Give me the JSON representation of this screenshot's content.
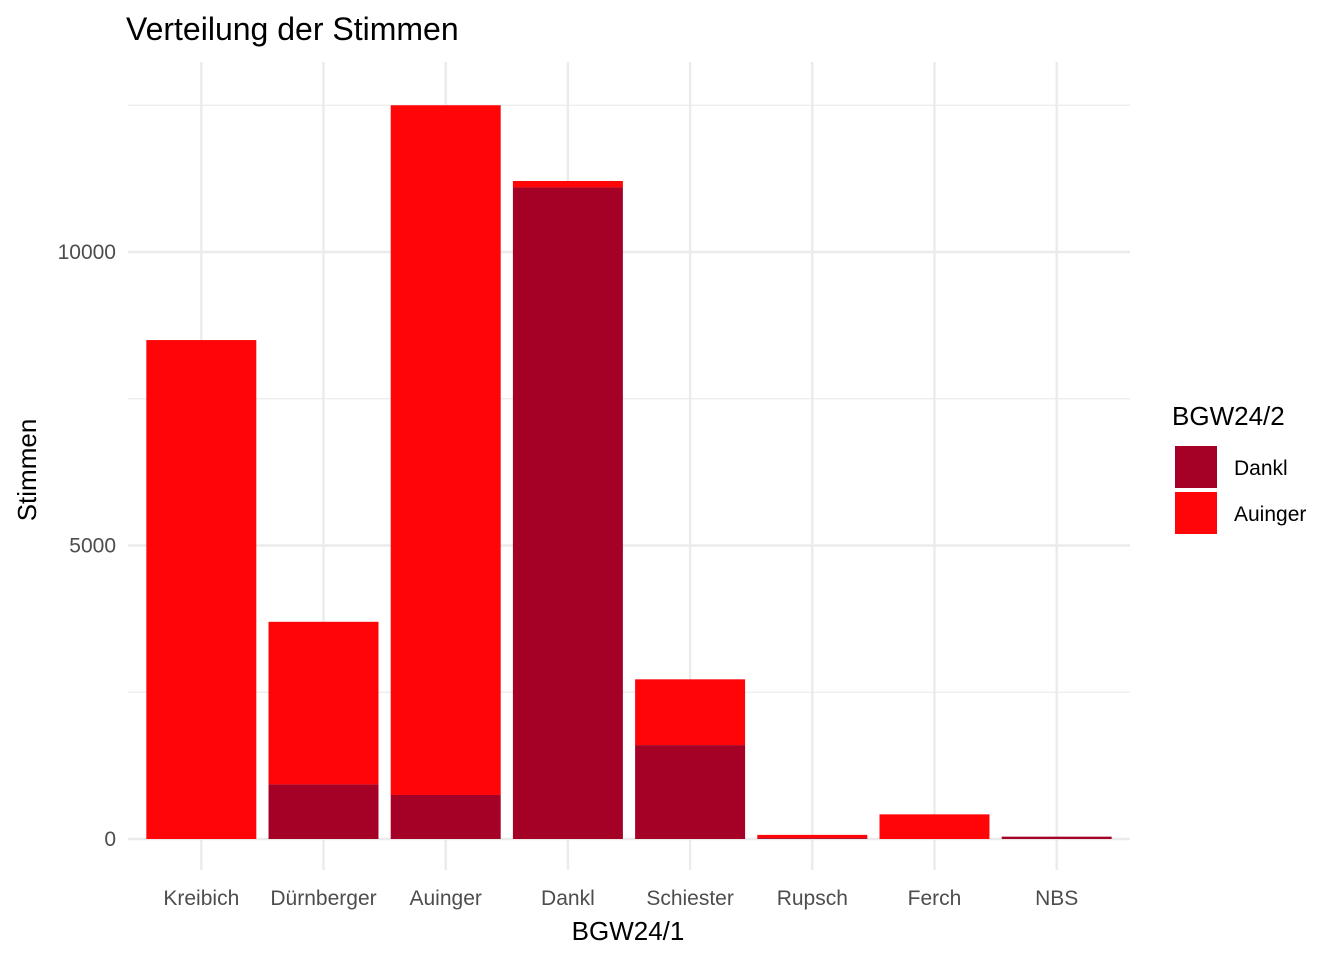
{
  "chart_data": {
    "type": "bar",
    "stacked": true,
    "title": "Verteilung der Stimmen",
    "xlabel": "BGW24/1",
    "ylabel": "Stimmen",
    "categories": [
      "Kreibich",
      "Dürnberger",
      "Auinger",
      "Dankl",
      "Schiester",
      "Rupsch",
      "Ferch",
      "NBS"
    ],
    "series": [
      {
        "name": "Dankl",
        "color": "#a50026",
        "values": [
          0,
          930,
          750,
          11100,
          1600,
          15,
          0,
          40
        ]
      },
      {
        "name": "Auinger",
        "color": "#ff0508",
        "values": [
          8500,
          2770,
          11750,
          110,
          1120,
          55,
          420,
          0
        ]
      }
    ],
    "ylim": [
      -500,
      13300
    ],
    "yticks": [
      0,
      5000,
      10000
    ],
    "ytick_labels": [
      "0",
      "5000",
      "10000"
    ],
    "grid": true,
    "legend": {
      "title": "BGW24/2",
      "position": "right"
    }
  }
}
